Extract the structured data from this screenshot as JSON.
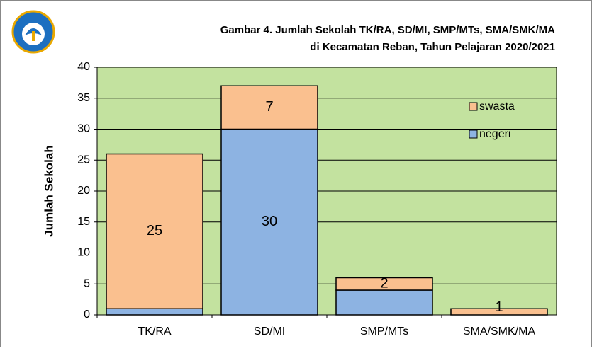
{
  "chart_data": {
    "type": "stacked_bar",
    "title": [
      "Gambar 4. Jumlah Sekolah TK/RA, SD/MI, SMP/MTs, SMA/SMK/MA",
      "di Kecamatan Reban, Tahun Pelajaran 2020/2021"
    ],
    "y_label": "Jumlah Sekolah",
    "categories": [
      "TK/RA",
      "SD/MI",
      "SMP/MTs",
      "SMA/SMK/MA"
    ],
    "series": [
      {
        "name": "negeri",
        "color": "#8db3e2",
        "values": [
          1,
          30,
          4,
          0
        ],
        "value_labels": [
          null,
          "30",
          null,
          null
        ]
      },
      {
        "name": "swasta",
        "color": "#fac08f",
        "values": [
          25,
          7,
          2,
          1
        ],
        "value_labels": [
          "25",
          "7",
          "2",
          "1"
        ]
      }
    ],
    "ylim": [
      0,
      40
    ],
    "yticks": [
      0,
      5,
      10,
      15,
      20,
      25,
      30,
      35,
      40
    ],
    "grid": true,
    "plot_background": "#c3e29f",
    "legend": "upper right"
  }
}
